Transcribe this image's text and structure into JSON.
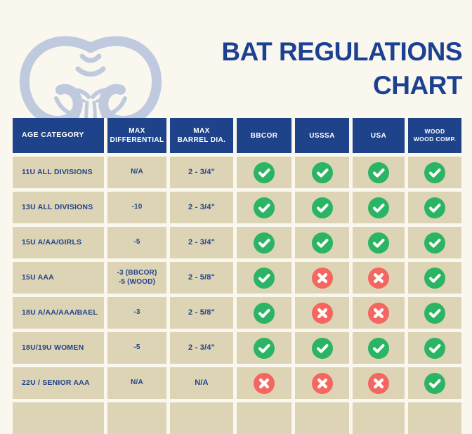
{
  "colors": {
    "navy": "#1d4192",
    "header_navy": "#1f438a",
    "beige": "#ddd4b5",
    "cream": "#faf7ef",
    "green": "#2bb463",
    "red": "#f4665f",
    "logo_blue": "#bfcadf"
  },
  "header": {
    "logo": "ram-head-logo",
    "title_line1": "BAT REGULATIONS",
    "title_line2": "CHART"
  },
  "chart_data": {
    "type": "table",
    "title": "BAT REGULATIONS CHART",
    "columns": [
      "AGE CATEGORY",
      "MAX\nDIFFERENTIAL",
      "MAX\nBARREL DIA.",
      "BBCOR",
      "USSSA",
      "USA",
      "WOOD\nWOOD COMP."
    ],
    "rows": [
      [
        "11U ALL DIVISIONS",
        "N/A",
        "2 - 3/4\"",
        "yes",
        "yes",
        "yes",
        "yes"
      ],
      [
        "13U ALL DIVISIONS",
        "-10",
        "2 - 3/4\"",
        "yes",
        "yes",
        "yes",
        "yes"
      ],
      [
        "15U A/AA/GIRLS",
        "-5",
        "2 - 3/4\"",
        "yes",
        "yes",
        "yes",
        "yes"
      ],
      [
        "15U AAA",
        "-3 (BBCOR)\n-5 (WOOD)",
        "2 - 5/8\"",
        "yes",
        "no",
        "no",
        "yes"
      ],
      [
        "18U A/AA/AAA/BAEL",
        "-3",
        "2 - 5/8\"",
        "yes",
        "no",
        "no",
        "yes"
      ],
      [
        "18U/19U WOMEN",
        "-5",
        "2 - 3/4\"",
        "yes",
        "yes",
        "yes",
        "yes"
      ],
      [
        "22U / SENIOR AAA",
        "N/A",
        "N/A",
        "no",
        "no",
        "no",
        "yes"
      ]
    ],
    "status_icons": {
      "yes": "check-icon",
      "no": "cross-icon"
    },
    "partial_row_cutoff": true,
    "legend_position": "none",
    "grid": false
  }
}
